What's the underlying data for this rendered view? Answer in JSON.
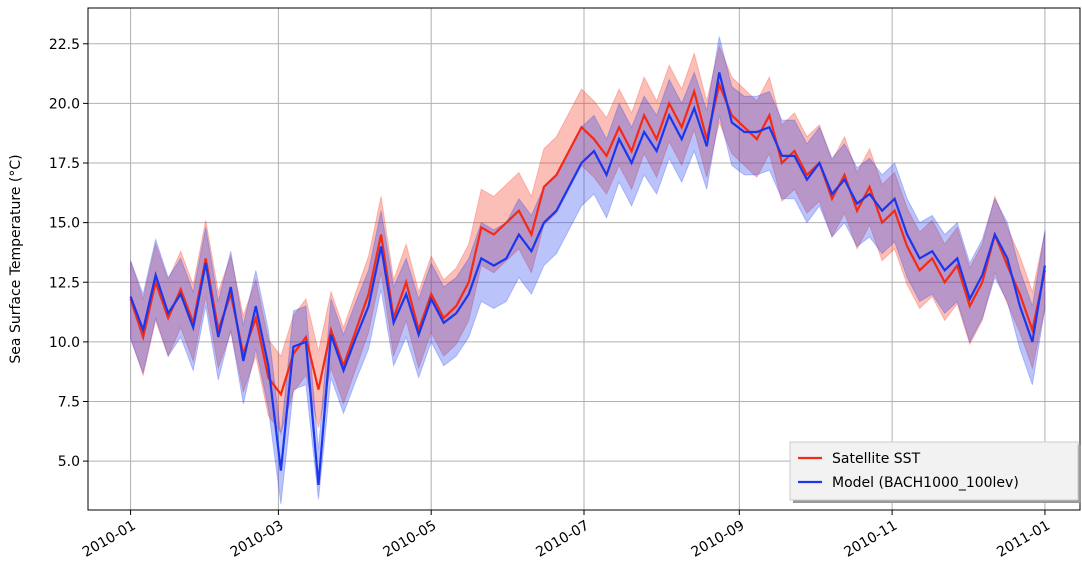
{
  "chart_data": {
    "type": "line",
    "ylabel": "Sea Surface Temperature (°C)",
    "x": [
      0,
      5,
      10,
      15,
      20,
      25,
      30,
      35,
      40,
      45,
      50,
      55,
      60,
      65,
      70,
      75,
      80,
      85,
      90,
      95,
      100,
      105,
      110,
      115,
      120,
      125,
      130,
      135,
      140,
      145,
      150,
      155,
      160,
      165,
      170,
      175,
      180,
      185,
      190,
      195,
      200,
      205,
      210,
      215,
      220,
      225,
      230,
      235,
      240,
      245,
      250,
      255,
      260,
      265,
      270,
      275,
      280,
      285,
      290,
      295,
      300,
      305,
      310,
      315,
      320,
      325,
      330,
      335,
      340,
      345,
      350,
      355,
      360,
      365
    ],
    "xlim": [
      -17,
      379
    ],
    "xticks": [
      {
        "value": 0,
        "label": "2010-01"
      },
      {
        "value": 59,
        "label": "2010-03"
      },
      {
        "value": 120,
        "label": "2010-05"
      },
      {
        "value": 181,
        "label": "2010-07"
      },
      {
        "value": 243,
        "label": "2010-09"
      },
      {
        "value": 304,
        "label": "2010-11"
      },
      {
        "value": 365,
        "label": "2011-01"
      }
    ],
    "ylim": [
      2.95,
      24.0
    ],
    "yticks": [
      {
        "value": 5,
        "label": "5.0"
      },
      {
        "value": 7.5,
        "label": "7.5"
      },
      {
        "value": 10,
        "label": "10.0"
      },
      {
        "value": 12.5,
        "label": "12.5"
      },
      {
        "value": 15,
        "label": "15.0"
      },
      {
        "value": 17.5,
        "label": "17.5"
      },
      {
        "value": 20,
        "label": "20.0"
      },
      {
        "value": 22.5,
        "label": "22.5"
      }
    ],
    "grid": true,
    "legend": "lower right",
    "series": [
      {
        "name": "Satellite SST",
        "color": "#f52a14",
        "values": [
          11.8,
          10.2,
          12.5,
          11.0,
          12.2,
          10.8,
          13.5,
          10.5,
          12.0,
          9.5,
          11.0,
          8.5,
          7.8,
          9.5,
          10.2,
          8.0,
          10.5,
          9.0,
          10.5,
          12.0,
          14.5,
          11.0,
          12.5,
          10.5,
          12.0,
          11.0,
          11.5,
          12.5,
          14.8,
          14.5,
          15.0,
          15.5,
          14.5,
          16.5,
          17.0,
          18.0,
          19.0,
          18.5,
          17.8,
          19.0,
          18.0,
          19.5,
          18.5,
          20.0,
          19.0,
          20.5,
          18.5,
          20.8,
          19.5,
          19.0,
          18.5,
          19.5,
          17.5,
          18.0,
          17.0,
          17.5,
          16.0,
          17.0,
          15.5,
          16.5,
          15.0,
          15.5,
          14.0,
          13.0,
          13.5,
          12.5,
          13.2,
          11.5,
          12.5,
          14.5,
          13.2,
          12.0,
          10.5,
          13.0
        ],
        "lower": [
          10.2,
          8.6,
          10.9,
          9.4,
          10.6,
          9.2,
          11.9,
          8.9,
          10.4,
          7.9,
          9.4,
          6.9,
          6.2,
          7.9,
          8.6,
          6.4,
          8.9,
          7.4,
          8.9,
          10.4,
          12.9,
          9.4,
          10.9,
          8.9,
          10.4,
          9.4,
          9.9,
          10.9,
          13.2,
          12.9,
          13.4,
          13.9,
          12.9,
          14.9,
          15.4,
          16.4,
          17.4,
          16.9,
          16.2,
          17.4,
          16.4,
          17.9,
          16.9,
          18.4,
          17.4,
          18.9,
          16.9,
          19.2,
          17.9,
          17.4,
          16.9,
          17.9,
          15.9,
          16.4,
          15.4,
          15.9,
          14.4,
          15.4,
          13.9,
          14.9,
          13.4,
          13.9,
          12.4,
          11.4,
          11.9,
          10.9,
          11.6,
          9.9,
          10.9,
          12.9,
          11.6,
          10.4,
          8.9,
          11.4
        ],
        "upper": [
          13.4,
          11.8,
          14.1,
          12.6,
          13.8,
          12.4,
          15.1,
          12.1,
          13.6,
          11.1,
          12.6,
          10.1,
          9.4,
          11.1,
          11.8,
          9.6,
          12.1,
          10.6,
          12.1,
          13.6,
          16.1,
          12.6,
          14.1,
          12.1,
          13.6,
          12.6,
          13.1,
          14.1,
          16.4,
          16.1,
          16.6,
          17.1,
          16.1,
          18.1,
          18.6,
          19.6,
          20.6,
          20.1,
          19.4,
          20.6,
          19.6,
          21.1,
          20.1,
          21.6,
          20.6,
          22.1,
          20.1,
          22.4,
          21.1,
          20.6,
          20.1,
          21.1,
          19.1,
          19.6,
          18.6,
          19.1,
          17.6,
          18.6,
          17.1,
          18.1,
          16.6,
          17.1,
          15.6,
          14.6,
          15.1,
          14.1,
          14.8,
          13.1,
          14.1,
          16.1,
          14.8,
          13.6,
          12.1,
          14.6
        ]
      },
      {
        "name": "Model (BACH1000_100lev)",
        "color": "#1a37f0",
        "values": [
          11.9,
          10.5,
          12.8,
          11.2,
          12.0,
          10.6,
          13.3,
          10.2,
          12.3,
          9.2,
          11.5,
          9.0,
          4.6,
          9.8,
          10.0,
          4.0,
          10.3,
          8.8,
          10.2,
          11.5,
          14.0,
          10.8,
          12.0,
          10.3,
          11.8,
          10.8,
          11.2,
          12.0,
          13.5,
          13.2,
          13.5,
          14.5,
          13.8,
          15.0,
          15.5,
          16.5,
          17.5,
          18.0,
          17.0,
          18.5,
          17.5,
          18.8,
          18.0,
          19.5,
          18.5,
          19.8,
          18.2,
          21.3,
          19.2,
          18.8,
          18.8,
          19.0,
          17.8,
          17.8,
          16.8,
          17.5,
          16.2,
          16.8,
          15.8,
          16.2,
          15.5,
          16.0,
          14.5,
          13.5,
          13.8,
          13.0,
          13.5,
          11.8,
          12.8,
          14.5,
          13.5,
          11.5,
          10.0,
          13.2
        ],
        "lower": [
          10.1,
          8.7,
          11.0,
          9.4,
          10.2,
          8.8,
          11.5,
          8.4,
          10.5,
          7.4,
          9.7,
          7.2,
          3.2,
          8.0,
          8.2,
          3.4,
          8.5,
          7.0,
          8.4,
          9.7,
          12.2,
          9.0,
          10.2,
          8.5,
          10.0,
          9.0,
          9.4,
          10.2,
          11.7,
          11.4,
          11.7,
          12.7,
          12.0,
          13.2,
          13.7,
          14.7,
          15.7,
          16.2,
          15.2,
          16.7,
          15.7,
          17.0,
          16.2,
          17.7,
          16.7,
          18.0,
          16.4,
          19.5,
          17.4,
          17.0,
          17.0,
          17.2,
          16.0,
          16.0,
          15.0,
          15.7,
          14.4,
          15.0,
          14.0,
          14.4,
          13.7,
          14.2,
          12.7,
          11.7,
          12.0,
          11.2,
          11.7,
          10.0,
          11.0,
          12.7,
          11.7,
          9.7,
          8.2,
          11.4
        ],
        "upper": [
          13.4,
          12.0,
          14.3,
          12.7,
          13.5,
          12.1,
          14.8,
          11.7,
          13.8,
          10.7,
          13.0,
          10.5,
          6.1,
          11.3,
          11.5,
          5.5,
          11.8,
          10.3,
          11.7,
          13.0,
          15.5,
          12.3,
          13.5,
          11.8,
          13.3,
          12.3,
          12.7,
          13.5,
          15.0,
          14.7,
          15.0,
          16.0,
          15.3,
          16.5,
          17.0,
          18.0,
          19.0,
          19.5,
          18.5,
          20.0,
          19.0,
          20.3,
          19.5,
          21.0,
          20.0,
          21.3,
          19.7,
          22.8,
          20.7,
          20.3,
          20.3,
          20.5,
          19.3,
          19.3,
          18.3,
          19.0,
          17.7,
          18.3,
          17.3,
          17.7,
          17.0,
          17.5,
          16.0,
          15.0,
          15.3,
          14.5,
          15.0,
          13.3,
          14.3,
          16.0,
          15.0,
          13.0,
          11.5,
          14.7
        ]
      }
    ]
  }
}
